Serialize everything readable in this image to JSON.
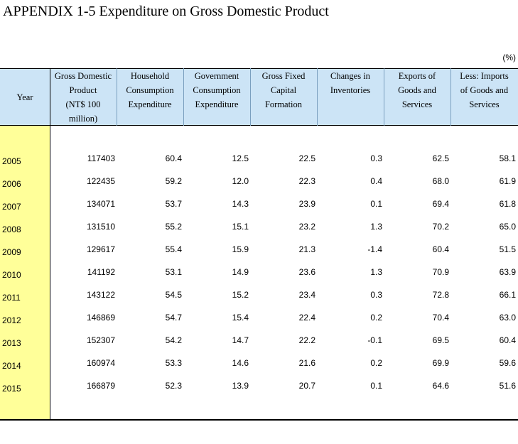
{
  "title": "APPENDIX 1-5  Expenditure on Gross Domestic Product",
  "unit": "(%)",
  "headers": [
    {
      "key": "year",
      "label": "Year"
    },
    {
      "key": "gdp",
      "label": "Gross Domestic\nProduct\n(NT$ 100\nmillion)"
    },
    {
      "key": "household",
      "label": "Household\nConsumption\nExpenditure"
    },
    {
      "key": "government",
      "label": "Government\nConsumption\nExpenditure"
    },
    {
      "key": "gfcf",
      "label": "Gross Fixed\nCapital\nFormation"
    },
    {
      "key": "inventories",
      "label": "Changes in\nInventories"
    },
    {
      "key": "exports",
      "label": "Exports of\nGoods and\nServices"
    },
    {
      "key": "imports",
      "label": "Less: Imports\nof Goods and\nServices"
    }
  ],
  "rows": [
    {
      "year": "2005",
      "values": [
        "117403",
        "60.4",
        "12.5",
        "22.5",
        "0.3",
        "62.5",
        "58.1"
      ]
    },
    {
      "year": "2006",
      "values": [
        "122435",
        "59.2",
        "12.0",
        "22.3",
        "0.4",
        "68.0",
        "61.9"
      ]
    },
    {
      "year": "2007",
      "values": [
        "134071",
        "53.7",
        "14.3",
        "23.9",
        "0.1",
        "69.4",
        "61.8"
      ]
    },
    {
      "year": "2008",
      "values": [
        "131510",
        "55.2",
        "15.1",
        "23.2",
        "1.3",
        "70.2",
        "65.0"
      ]
    },
    {
      "year": "2009",
      "values": [
        "129617",
        "55.4",
        "15.9",
        "21.3",
        "-1.4",
        "60.4",
        "51.5"
      ]
    },
    {
      "year": "2010",
      "values": [
        "141192",
        "53.1",
        "14.9",
        "23.6",
        "1.3",
        "70.9",
        "63.9"
      ]
    },
    {
      "year": "2011",
      "values": [
        "143122",
        "54.5",
        "15.2",
        "23.4",
        "0.3",
        "72.8",
        "66.1"
      ]
    },
    {
      "year": "2012",
      "values": [
        "146869",
        "54.7",
        "15.4",
        "22.4",
        "0.2",
        "70.4",
        "63.0"
      ]
    },
    {
      "year": "2013",
      "values": [
        "152307",
        "54.2",
        "14.7",
        "22.2",
        "-0.1",
        "69.5",
        "60.4"
      ]
    },
    {
      "year": "2014",
      "values": [
        "160974",
        "53.3",
        "14.6",
        "21.6",
        "0.2",
        "69.9",
        "59.6"
      ]
    },
    {
      "year": "2015",
      "values": [
        "166879",
        "52.3",
        "13.9",
        "20.7",
        "0.1",
        "64.6",
        "51.6"
      ]
    }
  ]
}
